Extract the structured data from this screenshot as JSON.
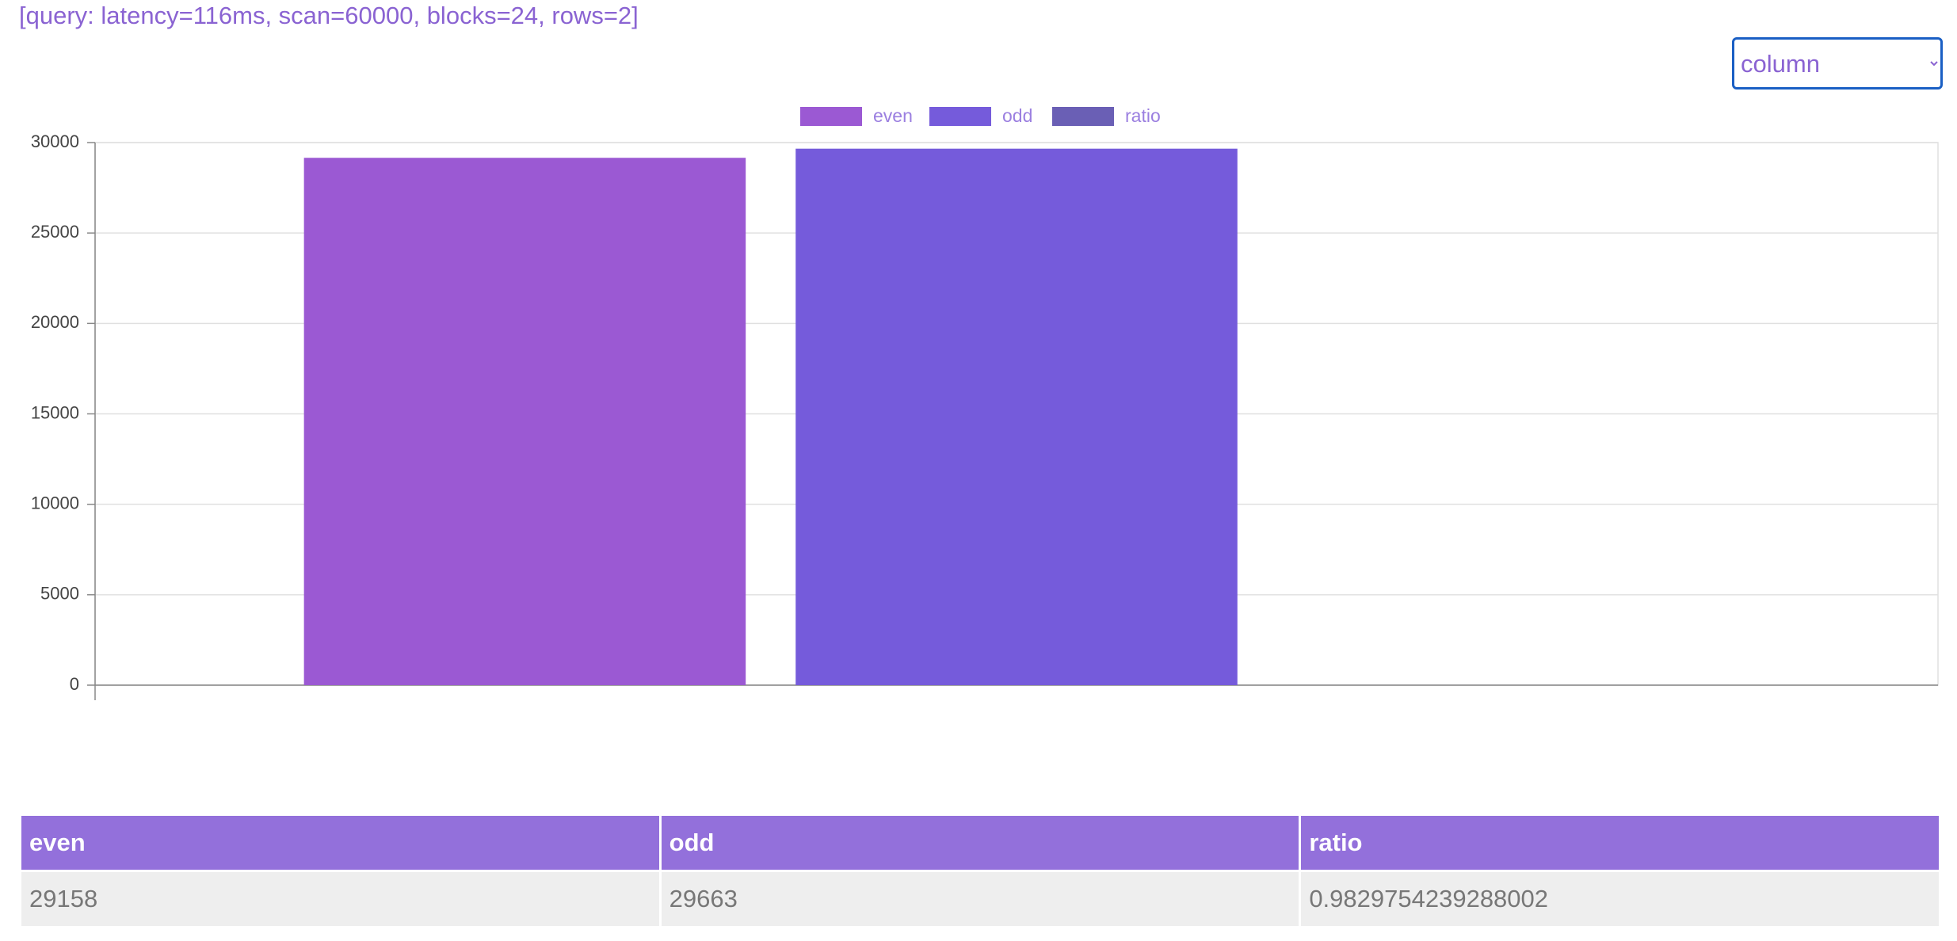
{
  "query_info": "[query: latency=116ms, scan=60000, blocks=24, rows=2]",
  "view_select": {
    "selected": "column"
  },
  "chart_data": {
    "type": "bar",
    "categories": [
      null
    ],
    "series": [
      {
        "name": "even",
        "color": "#9b59d3",
        "values": [
          29158
        ]
      },
      {
        "name": "odd",
        "color": "#755bdb",
        "values": [
          29663
        ]
      },
      {
        "name": "ratio",
        "color": "#6a5fb5",
        "values": [
          0.9829754239288002
        ]
      }
    ],
    "ylim": [
      0,
      30000
    ],
    "yticks": [
      0,
      5000,
      10000,
      15000,
      20000,
      25000,
      30000
    ],
    "grid": true,
    "legend": "top"
  },
  "table": {
    "header": [
      "even",
      "odd",
      "ratio"
    ],
    "rows": [
      [
        29158,
        29663,
        0.9829754239288002
      ]
    ]
  }
}
